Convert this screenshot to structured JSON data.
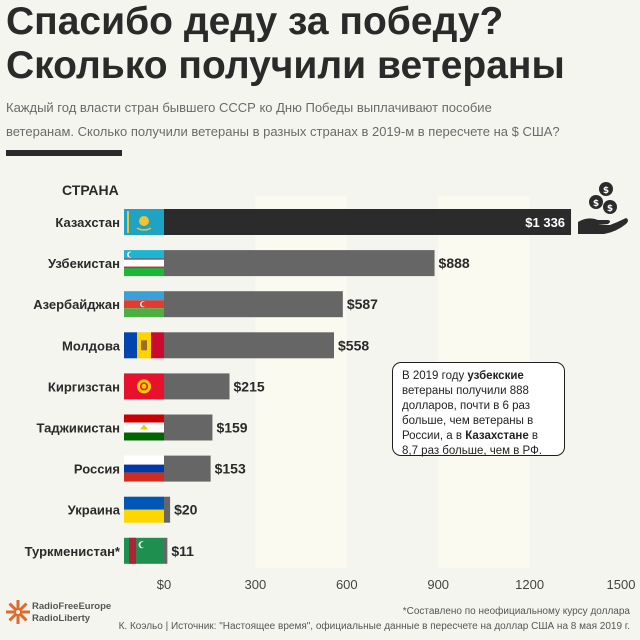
{
  "header": {
    "title_line1": "Спасибо деду за победу?",
    "title_line2": "Сколько получили ветераны",
    "subtitle_line1": "Каждый год власти стран бывшего СССР ко Дню Победы выплачивают пособие",
    "subtitle_line2": "ветеранам. Сколько получили ветераны в разных странах в 2019-м в пересчете на $ США?"
  },
  "chart_data": {
    "type": "bar",
    "orientation": "horizontal",
    "category_axis_label": "СТРАНА",
    "categories": [
      "Казахстан",
      "Узбекистан",
      "Азербайджан",
      "Молдова",
      "Киргизстан",
      "Таджикистан",
      "Россия",
      "Украина",
      "Туркменистан*"
    ],
    "values": [
      1336,
      888,
      587,
      558,
      215,
      159,
      153,
      20,
      11
    ],
    "value_labels": [
      "$1 336",
      "$888",
      "$587",
      "$558",
      "$215",
      "$159",
      "$153",
      "$20",
      "$11"
    ],
    "x_ticks": [
      0,
      300,
      600,
      900,
      1200,
      1500
    ],
    "x_tick_labels": [
      "$0",
      "300",
      "600",
      "900",
      "1200",
      "1500"
    ],
    "xlim": [
      0,
      1500
    ],
    "grid": "alternating vertical bands",
    "colors": {
      "highlight_bar": "#2b2b2b",
      "bar": "#666666",
      "band": "#fbfaf0"
    }
  },
  "note": {
    "p1": "В 2019 году ",
    "b1": "узбекские",
    "p2": " ветераны получили 888 долларов, почти в 6 раз больше, чем ветераны в России, а в ",
    "b2": "Казахстане",
    "p3": " в 8,7 раз больше, чем в РФ."
  },
  "footer": {
    "logo_line1": "RadioFreeEurope",
    "logo_line2": "RadioLiberty",
    "footnote": "*Составлено по неофициальному курсу доллара",
    "credits": "К. Коэльо | Источник: \"Настоящее время\", официальные данные в пересчете на доллар США на 8 мая 2019 г."
  },
  "icons": [
    "money-hand-icon",
    "rfe-logo-icon",
    "flag-kz-icon",
    "flag-uz-icon",
    "flag-az-icon",
    "flag-md-icon",
    "flag-kg-icon",
    "flag-tj-icon",
    "flag-ru-icon",
    "flag-ua-icon",
    "flag-tm-icon"
  ]
}
